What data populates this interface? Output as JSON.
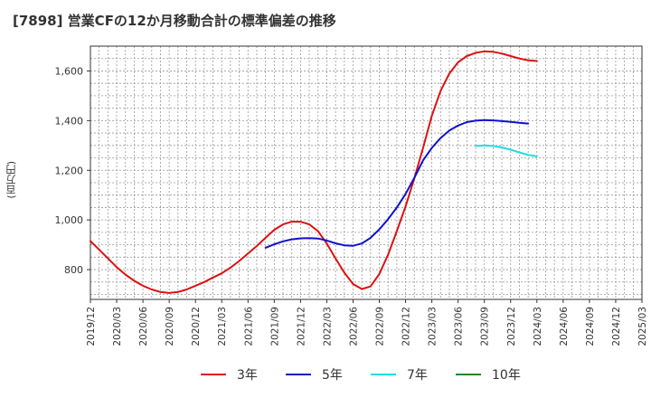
{
  "chart_title": "[7898]  営業CFの12か月移動合計の標準偏差の推移",
  "y_axis_unit": "(百万円)",
  "chart_data": {
    "type": "line",
    "title": "[7898]  営業CFの12か月移動合計の標準偏差の推移",
    "ylabel": "(百万円)",
    "xlabel": "",
    "grid": true,
    "legend_position": "bottom",
    "ylim": [
      680,
      1700
    ],
    "yticks": [
      800,
      1000,
      1200,
      1400,
      1600
    ],
    "ytick_labels": [
      "800",
      "1,000",
      "1,200",
      "1,400",
      "1,600"
    ],
    "x_categories": [
      "2019/12",
      "2020/01",
      "2020/02",
      "2020/03",
      "2020/04",
      "2020/05",
      "2020/06",
      "2020/07",
      "2020/08",
      "2020/09",
      "2020/10",
      "2020/11",
      "2020/12",
      "2021/01",
      "2021/02",
      "2021/03",
      "2021/04",
      "2021/05",
      "2021/06",
      "2021/07",
      "2021/08",
      "2021/09",
      "2021/10",
      "2021/11",
      "2021/12",
      "2022/01",
      "2022/02",
      "2022/03",
      "2022/04",
      "2022/05",
      "2022/06",
      "2022/07",
      "2022/08",
      "2022/09",
      "2022/10",
      "2022/11",
      "2022/12",
      "2023/01",
      "2023/02",
      "2023/03",
      "2023/04",
      "2023/05",
      "2023/06",
      "2023/07",
      "2023/08",
      "2023/09",
      "2023/10",
      "2023/11",
      "2023/12",
      "2024/01",
      "2024/02",
      "2024/03",
      "2024/04",
      "2024/05",
      "2024/06",
      "2024/07",
      "2024/08",
      "2024/09",
      "2024/10",
      "2024/11",
      "2024/12",
      "2025/01",
      "2025/02",
      "2025/03"
    ],
    "x_tick_labels": [
      "2019/12",
      "2020/03",
      "2020/06",
      "2020/09",
      "2020/12",
      "2021/03",
      "2021/06",
      "2021/09",
      "2021/12",
      "2022/03",
      "2022/06",
      "2022/09",
      "2022/12",
      "2023/03",
      "2023/06",
      "2023/09",
      "2023/12",
      "2024/03",
      "2024/06",
      "2024/09",
      "2024/12",
      "2025/03"
    ],
    "series": [
      {
        "name": "3年",
        "color": "#dd1111",
        "start": "2019/12",
        "values": [
          915,
          880,
          845,
          810,
          780,
          755,
          735,
          720,
          710,
          706,
          710,
          720,
          735,
          750,
          768,
          785,
          808,
          835,
          865,
          895,
          928,
          960,
          982,
          993,
          993,
          982,
          955,
          905,
          845,
          788,
          742,
          722,
          732,
          782,
          860,
          955,
          1055,
          1168,
          1290,
          1420,
          1520,
          1590,
          1635,
          1660,
          1673,
          1679,
          1677,
          1670,
          1660,
          1650,
          1643,
          1640
        ]
      },
      {
        "name": "5年",
        "color": "#1111cc",
        "start": "2021/08",
        "values": [
          888,
          902,
          914,
          922,
          926,
          927,
          925,
          917,
          906,
          898,
          896,
          905,
          928,
          962,
          1003,
          1050,
          1105,
          1170,
          1240,
          1290,
          1330,
          1360,
          1380,
          1394,
          1400,
          1402,
          1401,
          1398,
          1395,
          1391,
          1388
        ]
      },
      {
        "name": "7年",
        "color": "#22dddd",
        "start": "2023/08",
        "values": [
          1298,
          1300,
          1298,
          1292,
          1283,
          1272,
          1262,
          1256
        ]
      },
      {
        "name": "10年",
        "color": "#228822",
        "start": "2024/03",
        "values": []
      }
    ]
  }
}
